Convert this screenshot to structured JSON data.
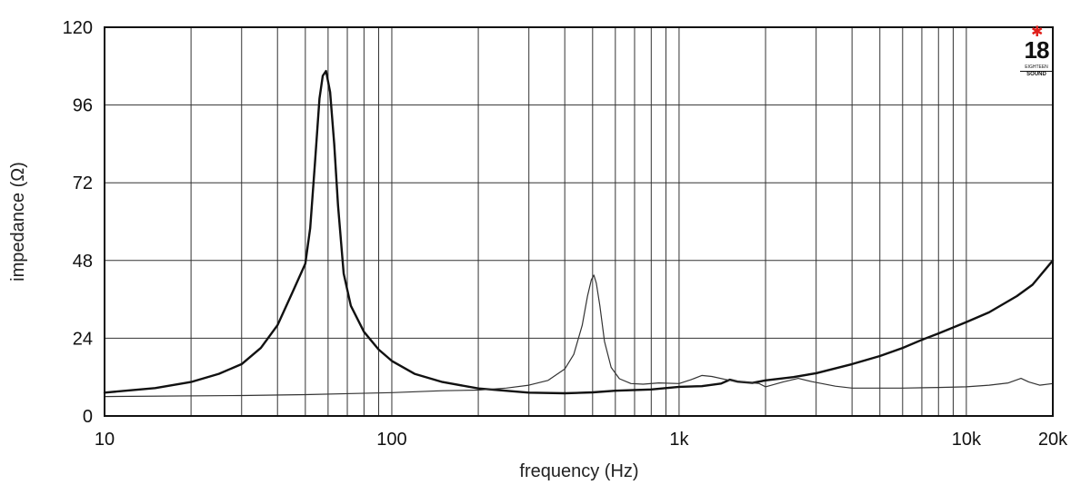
{
  "chart_data": {
    "type": "line",
    "xscale": "log",
    "xlim": [
      10,
      20000
    ],
    "ylim": [
      0,
      120
    ],
    "grid": true,
    "xlabel": "frequency (Hz)",
    "ylabel": "impedance (Ω)",
    "xticks": [
      {
        "value": 10,
        "label": "10"
      },
      {
        "value": 100,
        "label": "100"
      },
      {
        "value": 1000,
        "label": "1k"
      },
      {
        "value": 10000,
        "label": "10k"
      },
      {
        "value": 20000,
        "label": "20k"
      }
    ],
    "xgrid": [
      20,
      30,
      40,
      50,
      60,
      70,
      80,
      90,
      200,
      300,
      400,
      500,
      600,
      700,
      800,
      900,
      2000,
      3000,
      4000,
      5000,
      6000,
      7000,
      8000,
      9000
    ],
    "yticks": [
      0,
      24,
      48,
      72,
      96,
      120
    ],
    "series": [
      {
        "color": "#111111",
        "width": 2.4,
        "points": [
          [
            10,
            7.2
          ],
          [
            15,
            8.6
          ],
          [
            20,
            10.5
          ],
          [
            25,
            13
          ],
          [
            30,
            16
          ],
          [
            35,
            21
          ],
          [
            40,
            28
          ],
          [
            45,
            38
          ],
          [
            50,
            47
          ],
          [
            52,
            58
          ],
          [
            54,
            78
          ],
          [
            56,
            98
          ],
          [
            57.5,
            105
          ],
          [
            59,
            106.5
          ],
          [
            61,
            100
          ],
          [
            63,
            84
          ],
          [
            65,
            65
          ],
          [
            68,
            44
          ],
          [
            72,
            34
          ],
          [
            80,
            26
          ],
          [
            90,
            20.5
          ],
          [
            100,
            17
          ],
          [
            120,
            13
          ],
          [
            150,
            10.5
          ],
          [
            200,
            8.5
          ],
          [
            300,
            7.2
          ],
          [
            400,
            7
          ],
          [
            500,
            7.3
          ],
          [
            600,
            7.8
          ],
          [
            800,
            8.2
          ],
          [
            1000,
            9
          ],
          [
            1200,
            9.2
          ],
          [
            1400,
            10
          ],
          [
            1500,
            11.2
          ],
          [
            1600,
            10.6
          ],
          [
            1800,
            10.2
          ],
          [
            2000,
            11
          ],
          [
            2500,
            12
          ],
          [
            3000,
            13.2
          ],
          [
            4000,
            16
          ],
          [
            5000,
            18.5
          ],
          [
            6000,
            21
          ],
          [
            7000,
            23.5
          ],
          [
            8000,
            25.5
          ],
          [
            10000,
            29
          ],
          [
            12000,
            32
          ],
          [
            15000,
            37
          ],
          [
            17000,
            40.5
          ],
          [
            20000,
            48
          ]
        ]
      },
      {
        "color": "#333333",
        "width": 1.2,
        "points": [
          [
            10,
            6
          ],
          [
            30,
            6.3
          ],
          [
            50,
            6.6
          ],
          [
            100,
            7.2
          ],
          [
            150,
            7.8
          ],
          [
            200,
            8
          ],
          [
            250,
            8.6
          ],
          [
            300,
            9.5
          ],
          [
            350,
            11
          ],
          [
            400,
            14.5
          ],
          [
            430,
            19
          ],
          [
            460,
            28
          ],
          [
            480,
            37
          ],
          [
            495,
            42
          ],
          [
            505,
            43.5
          ],
          [
            515,
            41
          ],
          [
            530,
            34
          ],
          [
            550,
            23
          ],
          [
            580,
            15
          ],
          [
            620,
            11.5
          ],
          [
            680,
            10
          ],
          [
            750,
            9.8
          ],
          [
            850,
            10.2
          ],
          [
            1000,
            10
          ],
          [
            1100,
            11.2
          ],
          [
            1200,
            12.5
          ],
          [
            1300,
            12.2
          ],
          [
            1500,
            11
          ],
          [
            1700,
            10.5
          ],
          [
            1900,
            10
          ],
          [
            2000,
            9
          ],
          [
            2300,
            10.5
          ],
          [
            2600,
            11.6
          ],
          [
            2900,
            10.6
          ],
          [
            3500,
            9.2
          ],
          [
            4000,
            8.6
          ],
          [
            6000,
            8.6
          ],
          [
            8000,
            8.8
          ],
          [
            10000,
            9
          ],
          [
            12000,
            9.5
          ],
          [
            14000,
            10.2
          ],
          [
            15500,
            11.6
          ],
          [
            16500,
            10.5
          ],
          [
            18000,
            9.5
          ],
          [
            20000,
            10
          ]
        ]
      }
    ]
  },
  "logo": {
    "number": "18",
    "line1": "EIGHTEEN",
    "line2": "SOUND"
  }
}
